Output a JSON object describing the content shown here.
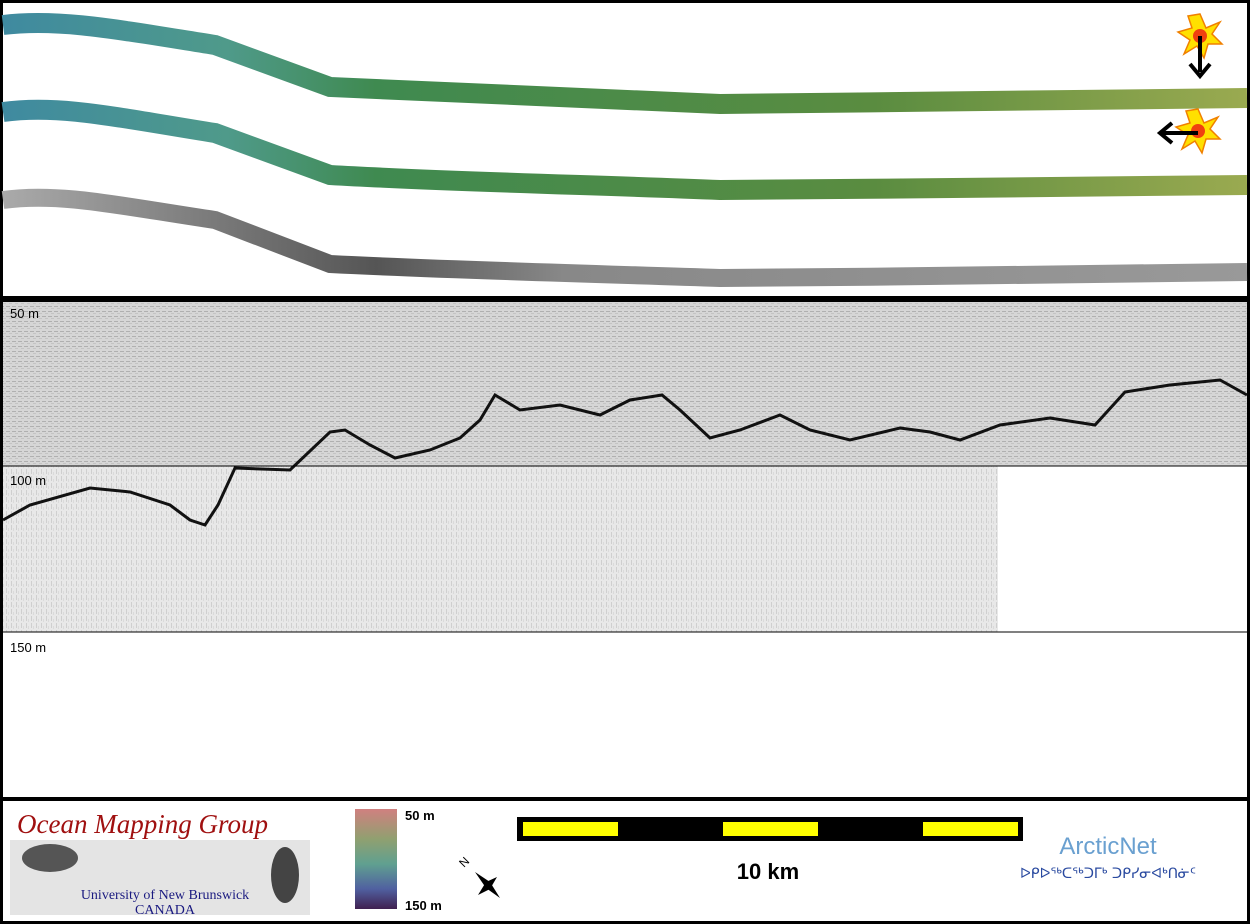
{
  "depth_labels": [
    "50 m",
    "100 m",
    "150 m"
  ],
  "logo": {
    "title": "Ocean Mapping Group",
    "subtitle": "University of New Brunswick",
    "country": "CANADA"
  },
  "colorbar": {
    "top": "50 m",
    "bottom": "150 m"
  },
  "north": "N",
  "scale": "10 km",
  "arcticnet": {
    "name": "ArcticNet",
    "syllabics": "ᐅᑭᐅᖅᑕᖅᑐᒥᒃ ᑐᑭᓯᓂᐊᒃᑎᓃᑦ"
  }
}
